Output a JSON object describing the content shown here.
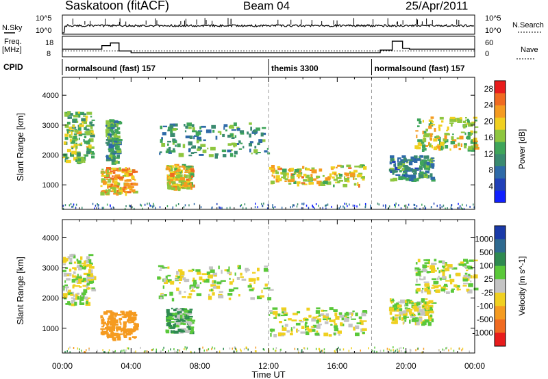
{
  "header": {
    "station": "Saskatoon (fitACF)",
    "beam": "Beam 04",
    "date": "25/Apr/2011"
  },
  "noise_panel": {
    "left_label": "N.Sky",
    "right_label": "N.Search",
    "tick_top": "10^5",
    "tick_bottom": "10^0"
  },
  "freq_panel": {
    "left_label_1": "Freq.",
    "left_label_2": "[MHz]",
    "left_tick_top": "18",
    "left_tick_bottom": "8",
    "right_label": "Nave",
    "right_tick_top": "60",
    "right_tick_bottom": "0"
  },
  "cpid_panel": {
    "label": "CPID",
    "segments": [
      {
        "name": "normalsound (fast) 157",
        "start_hour": 0,
        "end_hour": 12
      },
      {
        "name": "themis 3300",
        "start_hour": 12,
        "end_hour": 18
      },
      {
        "name": "normalsound (fast) 157",
        "start_hour": 18,
        "end_hour": 24
      }
    ]
  },
  "x_axis": {
    "title": "Time UT",
    "ticks": [
      "00:00",
      "04:00",
      "08:00",
      "12:00",
      "16:00",
      "20:00",
      "00:00"
    ],
    "range_hours": [
      0,
      24
    ]
  },
  "chart_data": [
    {
      "type": "heatmap",
      "title": "Power",
      "ylabel": "Slant Range [km]",
      "yticks": [
        1000,
        2000,
        3000,
        4000
      ],
      "ylim": [
        180,
        4600
      ],
      "colorbar": {
        "label": "Power [dB]",
        "ticks": [
          4,
          8,
          12,
          16,
          20,
          24,
          28
        ],
        "range": [
          0,
          30
        ],
        "colors": [
          "#1020ff",
          "#2040b8",
          "#2e6aa8",
          "#3a8a70",
          "#3fa55a",
          "#8ec63f",
          "#f0d020",
          "#f59b20",
          "#f06a20",
          "#e81c1c"
        ]
      },
      "regions": [
        {
          "t": [
            0.0,
            1.7
          ],
          "r": [
            1800,
            3500
          ],
          "level": 16
        },
        {
          "t": [
            2.5,
            3.2
          ],
          "r": [
            1800,
            3200
          ],
          "level": 12
        },
        {
          "t": [
            2.2,
            4.2
          ],
          "r": [
            700,
            1600
          ],
          "level": 22
        },
        {
          "t": [
            6.0,
            7.5
          ],
          "r": [
            900,
            1700
          ],
          "level": 20
        },
        {
          "t": [
            5.5,
            12.0
          ],
          "r": [
            2000,
            3100
          ],
          "level": 12
        },
        {
          "t": [
            12.0,
            17.5
          ],
          "r": [
            1000,
            1700
          ],
          "level": 20
        },
        {
          "t": [
            19.0,
            21.5
          ],
          "r": [
            1200,
            2000
          ],
          "level": 10
        },
        {
          "t": [
            20.5,
            24.0
          ],
          "r": [
            2200,
            3300
          ],
          "level": 18
        }
      ]
    },
    {
      "type": "heatmap",
      "title": "Velocity",
      "ylabel": "Slant Range [km]",
      "yticks": [
        1000,
        2000,
        3000,
        4000
      ],
      "ylim": [
        180,
        4600
      ],
      "colorbar": {
        "label": "Velocity [m s^-1]",
        "ticks": [
          1000,
          500,
          100,
          25,
          -25,
          -100,
          -500,
          -1000
        ],
        "colors": [
          "#1a3aa8",
          "#2e6a90",
          "#2e8a50",
          "#5ac83a",
          "#c4c4c4",
          "#f0d020",
          "#f59b20",
          "#f06a20",
          "#e81c1c"
        ]
      },
      "regions": [
        {
          "t": [
            0.0,
            1.7
          ],
          "r": [
            1800,
            3500
          ],
          "velocity": 0
        },
        {
          "t": [
            2.2,
            4.2
          ],
          "r": [
            700,
            1600
          ],
          "velocity": -300
        },
        {
          "t": [
            6.0,
            7.5
          ],
          "r": [
            900,
            1700
          ],
          "velocity": 80
        },
        {
          "t": [
            5.5,
            12.0
          ],
          "r": [
            2000,
            3100
          ],
          "velocity": 0
        },
        {
          "t": [
            12.0,
            17.5
          ],
          "r": [
            800,
            1700
          ],
          "velocity": 0
        },
        {
          "t": [
            19.0,
            21.5
          ],
          "r": [
            1200,
            2000
          ],
          "velocity": 0
        },
        {
          "t": [
            20.5,
            24.0
          ],
          "r": [
            2200,
            3300
          ],
          "velocity": 0
        }
      ]
    }
  ]
}
